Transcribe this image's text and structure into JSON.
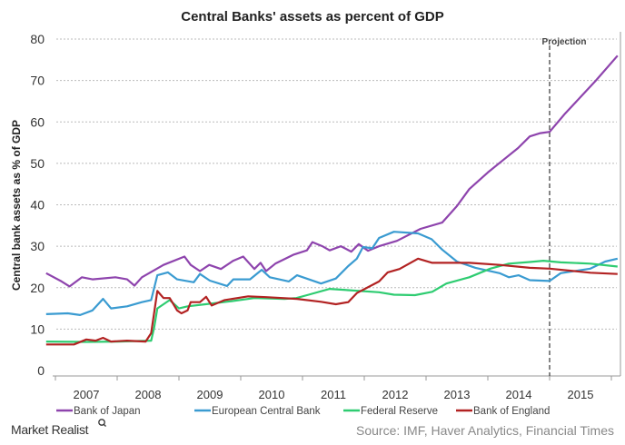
{
  "chart_data": {
    "type": "line",
    "title": "Central Banks' assets as percent of GDP",
    "xlabel": "",
    "ylabel": "Central bank assets as % of GDP",
    "ylim": [
      0,
      80
    ],
    "xlim": [
      2007,
      2016.1
    ],
    "yticks": [
      0,
      10,
      20,
      30,
      40,
      50,
      60,
      70,
      80
    ],
    "xtick_labels": [
      "2007",
      "2008",
      "2009",
      "2010",
      "2011",
      "2012",
      "2013",
      "2014",
      "2015"
    ],
    "grid": true,
    "annotation": {
      "text": "Projection",
      "x": 2015.0
    },
    "legend_position": "bottom",
    "series": [
      {
        "name": "Bank of Japan",
        "color": "#8e44ad",
        "x": [
          2006.85,
          2007.1,
          2007.23,
          2007.43,
          2007.6,
          2007.97,
          2008.16,
          2008.28,
          2008.4,
          2008.75,
          2009.09,
          2009.19,
          2009.34,
          2009.49,
          2009.68,
          2009.88,
          2010.04,
          2010.22,
          2010.32,
          2010.41,
          2010.56,
          2010.86,
          2011.07,
          2011.16,
          2011.32,
          2011.44,
          2011.62,
          2011.79,
          2011.91,
          2012.06,
          2012.24,
          2012.53,
          2012.91,
          2013.26,
          2013.5,
          2013.7,
          2014.0,
          2014.24,
          2014.49,
          2014.68,
          2014.85,
          2015.0,
          2015.25,
          2015.5,
          2015.75,
          2016.1
        ],
        "y": [
          23.5,
          21.5,
          20.3,
          22.5,
          22,
          22.5,
          22,
          20.5,
          22.5,
          25.5,
          27.5,
          25.5,
          24,
          25.5,
          24.5,
          26.5,
          27.5,
          24.5,
          26,
          24,
          25.8,
          28,
          29,
          31,
          30,
          29,
          30,
          28.7,
          30.5,
          28.9,
          30,
          31.3,
          34.2,
          35.7,
          39.7,
          43.8,
          47.8,
          50.7,
          53.7,
          56.5,
          57.3,
          57.6,
          62,
          66,
          70,
          76
        ]
      },
      {
        "name": "European Central Bank",
        "color": "#3a9bd1",
        "x": [
          2006.85,
          2007.2,
          2007.4,
          2007.6,
          2007.77,
          2007.9,
          2008.16,
          2008.4,
          2008.55,
          2008.65,
          2008.82,
          2008.97,
          2009.24,
          2009.34,
          2009.5,
          2009.78,
          2009.88,
          2010.15,
          2010.34,
          2010.47,
          2010.78,
          2010.91,
          2011.3,
          2011.54,
          2011.74,
          2011.88,
          2011.98,
          2012.13,
          2012.24,
          2012.48,
          2012.87,
          2013.09,
          2013.26,
          2013.5,
          2013.8,
          2014.19,
          2014.34,
          2014.5,
          2014.68,
          2015.0,
          2015.18,
          2015.66,
          2015.9,
          2016.1
        ],
        "y": [
          13.6,
          13.8,
          13.4,
          14.5,
          17.3,
          15,
          15.5,
          16.5,
          17,
          23,
          23.7,
          22,
          21.3,
          23.3,
          21.7,
          20.4,
          22,
          22,
          24.3,
          22.5,
          21.5,
          23,
          21,
          22.2,
          25.2,
          27,
          29.8,
          29.5,
          32,
          33.5,
          33.1,
          31.7,
          29.2,
          26.3,
          24.8,
          23.5,
          22.5,
          23,
          21.8,
          21.6,
          23.5,
          24.6,
          26.3,
          27
        ]
      },
      {
        "name": "Federal Reserve",
        "color": "#2ecc71",
        "x": [
          2006.85,
          2007.5,
          2008.0,
          2008.55,
          2008.6,
          2008.65,
          2008.85,
          2009.0,
          2009.14,
          2009.43,
          2009.83,
          2010.22,
          2010.71,
          2010.9,
          2011.1,
          2011.44,
          2011.74,
          2012.24,
          2012.48,
          2012.82,
          2013.1,
          2013.33,
          2013.7,
          2014.04,
          2014.34,
          2014.68,
          2014.9,
          2015.18,
          2015.66,
          2016.1
        ],
        "y": [
          7,
          6.9,
          7,
          7.2,
          10.5,
          15,
          17,
          15,
          15.5,
          16,
          16.7,
          17.5,
          17.3,
          17.5,
          18.3,
          19.7,
          19.4,
          18.9,
          18.3,
          18.2,
          19,
          21,
          22.5,
          24.6,
          25.8,
          26.2,
          26.5,
          26.1,
          25.8,
          25.1
        ]
      },
      {
        "name": "Bank of England",
        "color": "#b22222",
        "x": [
          2006.85,
          2007.3,
          2007.5,
          2007.65,
          2007.77,
          2007.9,
          2008.16,
          2008.46,
          2008.55,
          2008.65,
          2008.75,
          2008.85,
          2008.97,
          2009.04,
          2009.14,
          2009.19,
          2009.34,
          2009.44,
          2009.53,
          2009.74,
          2010.12,
          2010.41,
          2010.91,
          2011.3,
          2011.54,
          2011.74,
          2011.88,
          2012.24,
          2012.38,
          2012.57,
          2012.87,
          2013.1,
          2013.7,
          2014.19,
          2014.68,
          2015.0,
          2015.66,
          2016.1
        ],
        "y": [
          6.3,
          6.3,
          7.5,
          7.2,
          7.9,
          7,
          7.2,
          7,
          9,
          19.2,
          17.5,
          17.5,
          14.5,
          13.8,
          14.5,
          16.5,
          16.5,
          17.8,
          15.7,
          17,
          17.9,
          17.7,
          17.3,
          16.6,
          16,
          16.5,
          18.7,
          21.5,
          23.7,
          24.5,
          27,
          26,
          26,
          25.5,
          24.8,
          24.6,
          23.6,
          23.3
        ]
      }
    ]
  },
  "footer": {
    "brand": "Market Realist",
    "source": "Source: IMF, Haver Analytics, Financial Times"
  }
}
